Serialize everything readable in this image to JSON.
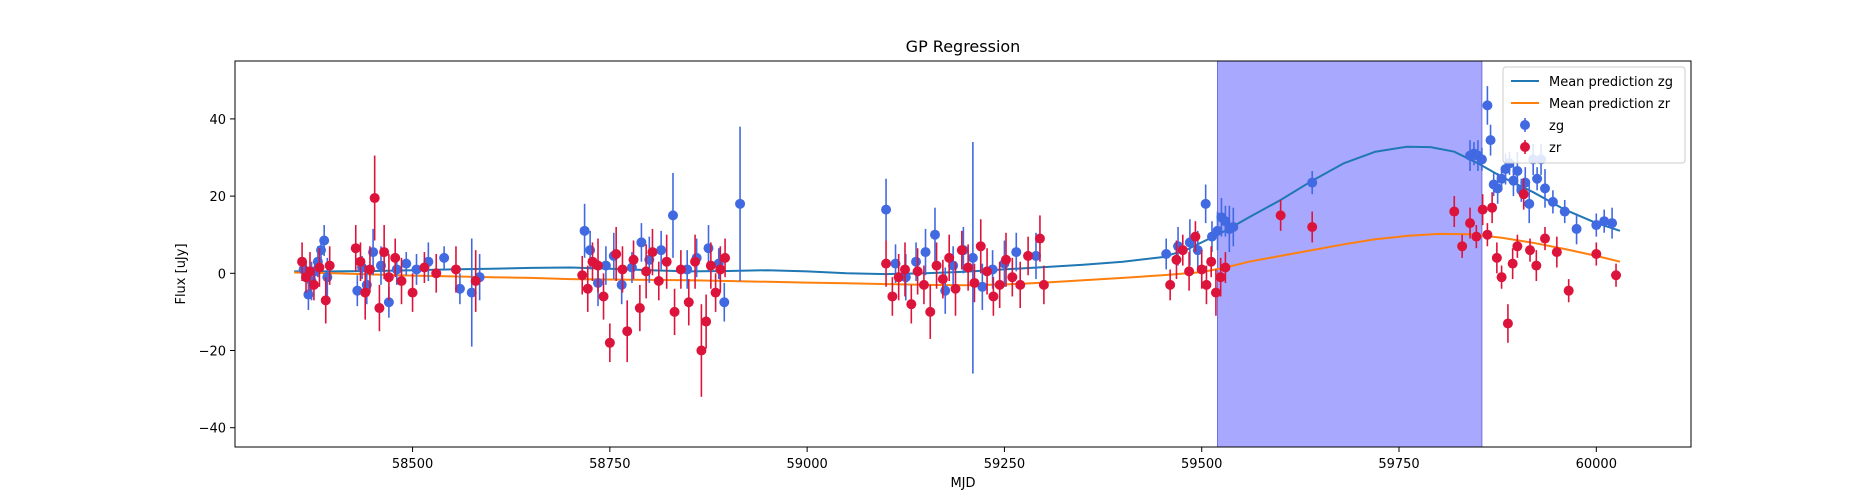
{
  "chart_data": {
    "type": "scatter",
    "title": "GP Regression",
    "xlabel": "MJD",
    "ylabel": "Flux [uJy]",
    "xlim": [
      58275,
      60120
    ],
    "ylim": [
      -45,
      55
    ],
    "x_ticks": [
      58500,
      58750,
      59000,
      59250,
      59500,
      59750,
      60000
    ],
    "y_ticks": [
      -40,
      -20,
      0,
      20,
      40
    ],
    "grid": false,
    "legend": "top-right",
    "shaded_region": {
      "x_start": 59520,
      "x_end": 59855,
      "color": "#a8a8ff"
    },
    "series": [
      {
        "name": "Mean prediction zg",
        "kind": "line",
        "color": "#1f77b4",
        "x": [
          58350,
          58400,
          58450,
          58500,
          58550,
          58600,
          58650,
          58700,
          58750,
          58800,
          58850,
          58900,
          58950,
          59000,
          59050,
          59100,
          59150,
          59200,
          59250,
          59300,
          59350,
          59400,
          59450,
          59480,
          59500,
          59530,
          59560,
          59600,
          59640,
          59680,
          59720,
          59760,
          59790,
          59820,
          59850,
          59880,
          59920,
          59960,
          60000,
          60030
        ],
        "y": [
          0.5,
          0.5,
          0.6,
          0.8,
          1.0,
          1.2,
          1.4,
          1.5,
          1.2,
          0.8,
          0.5,
          0.6,
          0.8,
          0.5,
          0.0,
          -0.2,
          0.0,
          0.4,
          1.0,
          1.6,
          2.2,
          3.0,
          4.2,
          6.0,
          8.0,
          11.0,
          14.5,
          19.0,
          24.0,
          28.5,
          31.5,
          32.8,
          32.7,
          31.5,
          28.5,
          25.0,
          21.0,
          16.5,
          13.0,
          11.0
        ]
      },
      {
        "name": "Mean prediction zr",
        "kind": "line",
        "color": "#ff7f0e",
        "x": [
          58350,
          58400,
          58450,
          58500,
          58550,
          58600,
          58650,
          58700,
          58750,
          58800,
          58850,
          58900,
          58950,
          59000,
          59050,
          59100,
          59150,
          59200,
          59250,
          59300,
          59350,
          59400,
          59450,
          59500,
          59530,
          59560,
          59600,
          59640,
          59680,
          59720,
          59760,
          59800,
          59840,
          59880,
          59920,
          59960,
          60000,
          60030
        ],
        "y": [
          0.2,
          0.0,
          -0.3,
          -0.6,
          -0.8,
          -1.0,
          -1.2,
          -1.5,
          -1.6,
          -1.7,
          -1.8,
          -2.0,
          -2.2,
          -2.4,
          -2.6,
          -2.8,
          -3.0,
          -3.1,
          -2.9,
          -2.4,
          -1.8,
          -1.2,
          -0.5,
          0.3,
          1.5,
          3.0,
          4.5,
          6.0,
          7.5,
          8.8,
          9.7,
          10.2,
          10.1,
          9.2,
          7.9,
          6.3,
          4.5,
          3.0
        ]
      },
      {
        "name": "zg",
        "kind": "errorbar",
        "color": "#4169e1",
        "x": [
          58362,
          58368,
          58372,
          58376,
          58380,
          58384,
          58388,
          58392,
          58430,
          58436,
          58442,
          58450,
          58460,
          58470,
          58480,
          58492,
          58505,
          58520,
          58540,
          58560,
          58575,
          58585,
          58718,
          58725,
          58735,
          58745,
          58755,
          58765,
          58778,
          58790,
          58800,
          58815,
          58830,
          58848,
          58860,
          58875,
          58888,
          58895,
          58915,
          59100,
          59112,
          59125,
          59138,
          59150,
          59162,
          59175,
          59185,
          59198,
          59210,
          59222,
          59235,
          59250,
          59265,
          59290,
          59455,
          59470,
          59485,
          59495,
          59505,
          59513,
          59520,
          59525,
          59530,
          59535,
          59540,
          59640,
          59840,
          59845,
          59850,
          59855,
          59862,
          59866,
          59870,
          59875,
          59880,
          59885,
          59890,
          59895,
          59900,
          59905,
          59910,
          59915,
          59920,
          59925,
          59930,
          59935,
          59945,
          59960,
          59975,
          60000,
          60010,
          60020
        ],
        "y": [
          1.0,
          -5.5,
          -2.0,
          0.5,
          3.0,
          6.0,
          8.5,
          -1.0,
          -4.5,
          1.5,
          -3.0,
          5.5,
          2.0,
          -7.5,
          1.0,
          2.5,
          1.0,
          3.0,
          4.0,
          -4.0,
          -5.0,
          -1.0,
          11.0,
          6.0,
          -2.5,
          2.0,
          4.5,
          -3.0,
          1.5,
          8.0,
          3.5,
          6.0,
          15.0,
          1.0,
          4.0,
          6.5,
          2.5,
          -7.5,
          18.0,
          16.5,
          2.5,
          -1.0,
          3.0,
          5.5,
          10.0,
          -4.5,
          2.0,
          6.0,
          4.0,
          -3.5,
          1.0,
          2.5,
          5.5,
          4.5,
          5.0,
          7.0,
          8.0,
          6.0,
          18.0,
          9.5,
          11.0,
          14.5,
          13.5,
          11.5,
          12.0,
          23.5,
          30.5,
          31.0,
          30.5,
          29.5,
          43.5,
          34.5,
          23.0,
          22.0,
          24.5,
          27.0,
          28.5,
          24.0,
          26.5,
          21.5,
          23.5,
          18.0,
          29.5,
          24.5,
          29.5,
          22.0,
          18.5,
          16.0,
          11.5,
          12.5,
          13.5,
          13.0
        ],
        "err": [
          3,
          4,
          5,
          3,
          4,
          3,
          4,
          5,
          4,
          3,
          5,
          6,
          5,
          4,
          4,
          3,
          4,
          5,
          3,
          4,
          14,
          6,
          7,
          5,
          6,
          5,
          6,
          5,
          4,
          5,
          6,
          5,
          11,
          5,
          5,
          6,
          4,
          5,
          20,
          8,
          5,
          6,
          5,
          6,
          7,
          6,
          5,
          6,
          30,
          6,
          5,
          6,
          5,
          6,
          4,
          5,
          6,
          5,
          5,
          4,
          5,
          5,
          4,
          6,
          5,
          3,
          4,
          3,
          4,
          3,
          5,
          4,
          3,
          4,
          3,
          4,
          3,
          4,
          5,
          3,
          4,
          5,
          4,
          3,
          4,
          5,
          3,
          3,
          4,
          3,
          3,
          4
        ]
      },
      {
        "name": "zr",
        "kind": "errorbar",
        "color": "#dc143c",
        "x": [
          58360,
          58365,
          58370,
          58375,
          58382,
          58390,
          58395,
          58428,
          58434,
          58440,
          58446,
          58452,
          58458,
          58464,
          58470,
          58478,
          58486,
          58500,
          58515,
          58530,
          58555,
          58580,
          58715,
          58722,
          58728,
          58735,
          58742,
          58750,
          58758,
          58766,
          58772,
          58780,
          58788,
          58796,
          58804,
          58812,
          58822,
          58832,
          58840,
          58850,
          58858,
          58866,
          58872,
          58878,
          58884,
          58890,
          58896,
          59100,
          59108,
          59116,
          59124,
          59132,
          59140,
          59148,
          59156,
          59164,
          59172,
          59180,
          59188,
          59196,
          59204,
          59212,
          59220,
          59228,
          59236,
          59244,
          59252,
          59260,
          59270,
          59280,
          59295,
          59300,
          59460,
          59468,
          59476,
          59484,
          59492,
          59500,
          59506,
          59512,
          59518,
          59524,
          59530,
          59600,
          59640,
          59820,
          59830,
          59840,
          59848,
          59856,
          59862,
          59868,
          59874,
          59880,
          59888,
          59894,
          59900,
          59908,
          59916,
          59924,
          59935,
          59950,
          59965,
          60000,
          60025
        ],
        "y": [
          3.0,
          -1.0,
          0.5,
          -3.0,
          1.5,
          -7.0,
          2.0,
          6.5,
          3.0,
          -5.0,
          1.0,
          19.5,
          -9.0,
          5.5,
          -1.0,
          4.0,
          -2.0,
          -5.0,
          1.5,
          0.0,
          1.0,
          -2.0,
          -0.5,
          -4.0,
          3.0,
          2.0,
          -6.0,
          -18.0,
          5.0,
          1.0,
          -15.0,
          3.5,
          -9.0,
          0.5,
          5.5,
          -2.0,
          3.0,
          -10.0,
          1.0,
          -7.5,
          3.0,
          -20.0,
          -12.5,
          2.0,
          -5.0,
          1.0,
          4.0,
          2.5,
          -6.0,
          -1.0,
          1.0,
          -8.0,
          0.5,
          -3.0,
          -10.0,
          2.0,
          -1.5,
          4.0,
          -4.0,
          6.0,
          1.5,
          -2.5,
          7.0,
          0.5,
          -6.0,
          -3.0,
          3.5,
          -1.0,
          -3.0,
          4.5,
          9.0,
          -3.0,
          -3.0,
          3.5,
          6.0,
          0.5,
          9.5,
          1.0,
          -3.0,
          3.0,
          -5.0,
          -1.0,
          1.5,
          15.0,
          12.0,
          16.0,
          7.0,
          13.0,
          9.5,
          16.5,
          10.0,
          17.0,
          4.0,
          -1.0,
          -13.0,
          2.5,
          7.0,
          20.5,
          6.0,
          2.0,
          9.0,
          5.5,
          -4.5,
          5.0,
          -0.5
        ],
        "err": [
          5,
          4,
          5,
          4,
          5,
          6,
          5,
          6,
          5,
          7,
          6,
          11,
          6,
          7,
          6,
          5,
          6,
          5,
          4,
          5,
          6,
          8,
          5,
          6,
          5,
          7,
          6,
          5,
          7,
          6,
          8,
          5,
          6,
          7,
          6,
          5,
          7,
          6,
          5,
          6,
          7,
          12,
          7,
          6,
          5,
          6,
          5,
          6,
          5,
          6,
          7,
          5,
          6,
          5,
          7,
          6,
          5,
          6,
          7,
          5,
          6,
          5,
          7,
          6,
          5,
          6,
          7,
          5,
          6,
          5,
          6,
          5,
          4,
          5,
          4,
          5,
          4,
          5,
          5,
          4,
          6,
          5,
          4,
          4,
          4,
          4,
          3,
          4,
          3,
          4,
          3,
          4,
          4,
          3,
          5,
          4,
          3,
          4,
          3,
          4,
          3,
          4,
          3,
          3,
          3
        ]
      }
    ]
  }
}
